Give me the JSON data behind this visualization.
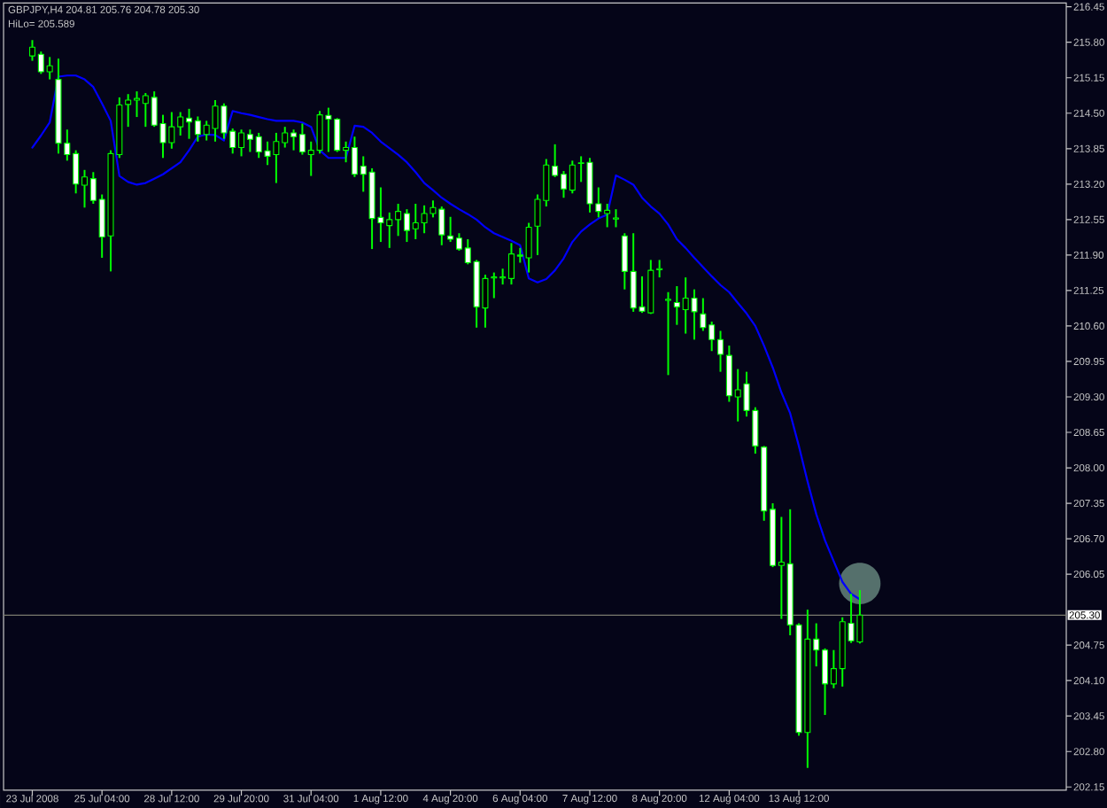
{
  "chart_data": {
    "type": "candlestick",
    "title": "GBPJPY,H4 204.81 205.76 204.78 205.30",
    "subtitle": "HiLo= 205.589",
    "categories": [
      "23 Jul 2008",
      null,
      null,
      null,
      null,
      null,
      null,
      null,
      "25 Jul 04:00",
      null,
      null,
      null,
      null,
      null,
      null,
      null,
      "28 Jul 12:00",
      null,
      null,
      null,
      null,
      null,
      null,
      null,
      "29 Jul 20:00",
      null,
      null,
      null,
      null,
      null,
      null,
      null,
      "31 Jul 04:00",
      null,
      null,
      null,
      null,
      null,
      null,
      null,
      "1 Aug 12:00",
      null,
      null,
      null,
      null,
      null,
      null,
      null,
      "4 Aug 20:00",
      null,
      null,
      null,
      null,
      null,
      null,
      null,
      "6 Aug 04:00",
      null,
      null,
      null,
      null,
      null,
      null,
      null,
      "7 Aug 12:00",
      null,
      null,
      null,
      null,
      null,
      null,
      null,
      "8 Aug 20:00",
      null,
      null,
      null,
      null,
      null,
      null,
      null,
      "12 Aug 04:00",
      null,
      null,
      null,
      null,
      null,
      null,
      null,
      "13 Aug 12:00",
      null,
      null,
      null,
      null,
      null,
      null,
      null
    ],
    "ohlc": [
      [
        215.55,
        215.84,
        215.46,
        215.71
      ],
      [
        215.58,
        215.63,
        215.22,
        215.26
      ],
      [
        215.26,
        215.53,
        215.12,
        215.37
      ],
      [
        215.12,
        215.5,
        213.76,
        213.95
      ],
      [
        213.95,
        214.2,
        213.63,
        213.74
      ],
      [
        213.76,
        213.82,
        213.03,
        213.2
      ],
      [
        213.18,
        213.46,
        212.77,
        213.33
      ],
      [
        213.3,
        213.42,
        212.84,
        212.9
      ],
      [
        212.92,
        213.01,
        211.85,
        212.23
      ],
      [
        212.25,
        213.82,
        211.6,
        213.76
      ],
      [
        213.74,
        214.79,
        213.68,
        214.65
      ],
      [
        214.66,
        214.85,
        214.25,
        214.74
      ],
      [
        214.74,
        214.9,
        214.43,
        214.77
      ],
      [
        214.68,
        214.87,
        214.25,
        214.82
      ],
      [
        214.79,
        214.9,
        214.25,
        214.28
      ],
      [
        214.31,
        214.47,
        213.68,
        213.96
      ],
      [
        213.96,
        214.52,
        213.85,
        214.25
      ],
      [
        214.25,
        214.52,
        214.09,
        214.43
      ],
      [
        214.41,
        214.58,
        214.03,
        214.34
      ],
      [
        214.36,
        214.44,
        213.98,
        214.11
      ],
      [
        214.11,
        214.36,
        214.0,
        214.28
      ],
      [
        214.22,
        214.74,
        213.98,
        214.63
      ],
      [
        214.63,
        214.68,
        214.03,
        214.14
      ],
      [
        214.17,
        214.22,
        213.76,
        213.87
      ],
      [
        213.87,
        214.2,
        213.71,
        214.14
      ],
      [
        214.11,
        214.2,
        213.79,
        214.02
      ],
      [
        214.07,
        214.14,
        213.68,
        213.79
      ],
      [
        213.81,
        213.98,
        213.55,
        213.71
      ],
      [
        213.74,
        214.14,
        213.22,
        213.98
      ],
      [
        213.96,
        214.25,
        213.87,
        214.14
      ],
      [
        214.14,
        214.2,
        213.82,
        214.07
      ],
      [
        214.11,
        214.31,
        213.74,
        213.79
      ],
      [
        213.74,
        213.98,
        213.35,
        213.82
      ],
      [
        213.82,
        214.54,
        213.76,
        214.47
      ],
      [
        214.46,
        214.6,
        213.79,
        214.39
      ],
      [
        214.39,
        214.41,
        213.79,
        213.82
      ],
      [
        213.82,
        213.98,
        213.6,
        213.87
      ],
      [
        213.87,
        214.07,
        213.33,
        213.38
      ],
      [
        213.53,
        213.71,
        213.06,
        213.38
      ],
      [
        213.42,
        213.49,
        212.01,
        212.57
      ],
      [
        212.59,
        213.14,
        212.14,
        212.49
      ],
      [
        212.44,
        212.68,
        212.03,
        212.55
      ],
      [
        212.55,
        212.84,
        212.25,
        212.7
      ],
      [
        212.66,
        212.74,
        212.14,
        212.35
      ],
      [
        212.38,
        212.84,
        212.19,
        212.49
      ],
      [
        212.49,
        212.81,
        212.3,
        212.66
      ],
      [
        212.66,
        212.9,
        212.59,
        212.77
      ],
      [
        212.74,
        212.79,
        212.08,
        212.27
      ],
      [
        212.25,
        212.6,
        212.14,
        212.19
      ],
      [
        212.21,
        212.3,
        211.98,
        212.01
      ],
      [
        212.03,
        212.19,
        211.73,
        211.76
      ],
      [
        211.78,
        211.81,
        210.57,
        210.95
      ],
      [
        210.93,
        211.54,
        210.57,
        211.47
      ],
      [
        211.48,
        211.58,
        211.11,
        211.5
      ],
      [
        211.48,
        211.65,
        211.36,
        211.5
      ],
      [
        211.47,
        212.12,
        211.36,
        211.92
      ],
      [
        211.88,
        212.03,
        211.76,
        211.9
      ],
      [
        211.85,
        212.49,
        211.58,
        212.41
      ],
      [
        212.43,
        213.01,
        211.9,
        212.92
      ],
      [
        212.9,
        213.66,
        212.79,
        213.55
      ],
      [
        213.53,
        213.93,
        213.33,
        213.36
      ],
      [
        213.38,
        213.44,
        212.95,
        213.11
      ],
      [
        213.09,
        213.63,
        213.03,
        213.55
      ],
      [
        213.58,
        213.71,
        213.24,
        213.59
      ],
      [
        213.6,
        213.68,
        212.68,
        212.84
      ],
      [
        212.84,
        213.14,
        212.59,
        212.7
      ],
      [
        212.66,
        212.84,
        212.41,
        212.72
      ],
      [
        212.56,
        212.74,
        212.41,
        212.58
      ],
      [
        212.25,
        212.3,
        211.27,
        211.6
      ],
      [
        211.6,
        212.3,
        210.86,
        210.93
      ],
      [
        210.95,
        211.51,
        210.84,
        210.87
      ],
      [
        210.84,
        211.81,
        210.82,
        211.62
      ],
      [
        211.63,
        211.81,
        211.49,
        211.65
      ],
      [
        211.07,
        211.22,
        209.7,
        211.09
      ],
      [
        211.03,
        211.33,
        210.62,
        210.95
      ],
      [
        210.9,
        211.49,
        210.46,
        211.11
      ],
      [
        211.11,
        211.27,
        210.35,
        210.86
      ],
      [
        210.82,
        211.11,
        210.51,
        210.57
      ],
      [
        210.62,
        210.68,
        210.14,
        210.35
      ],
      [
        210.35,
        210.51,
        209.76,
        210.08
      ],
      [
        210.06,
        210.24,
        209.21,
        209.32
      ],
      [
        209.3,
        209.81,
        208.85,
        209.43
      ],
      [
        209.54,
        209.76,
        208.94,
        209.05
      ],
      [
        209.05,
        209.11,
        208.26,
        208.4
      ],
      [
        208.38,
        208.4,
        207.03,
        207.21
      ],
      [
        207.24,
        207.35,
        206.18,
        206.21
      ],
      [
        206.21,
        207.1,
        205.23,
        206.27
      ],
      [
        206.24,
        207.24,
        204.93,
        205.12
      ],
      [
        205.12,
        205.15,
        203.09,
        203.15
      ],
      [
        203.15,
        205.4,
        202.5,
        204.86
      ],
      [
        204.86,
        205.15,
        204.36,
        204.66
      ],
      [
        204.66,
        204.69,
        203.47,
        204.04
      ],
      [
        204.04,
        204.66,
        203.96,
        204.32
      ],
      [
        204.32,
        205.26,
        203.99,
        205.18
      ],
      [
        205.15,
        205.69,
        204.79,
        204.83
      ],
      [
        204.81,
        205.76,
        204.78,
        205.3
      ]
    ],
    "color": "#00ff00",
    "series": [
      {
        "type": "scatter",
        "marker": "circle",
        "color": "#55706c",
        "values": [
          null,
          null,
          null,
          null,
          null,
          null,
          null,
          null,
          null,
          null,
          null,
          null,
          null,
          null,
          null,
          null,
          null,
          null,
          null,
          null,
          null,
          null,
          null,
          null,
          null,
          null,
          null,
          null,
          null,
          null,
          null,
          null,
          null,
          null,
          null,
          null,
          null,
          null,
          null,
          null,
          null,
          null,
          null,
          null,
          null,
          null,
          null,
          null,
          null,
          null,
          null,
          null,
          null,
          null,
          null,
          null,
          null,
          null,
          null,
          null,
          null,
          null,
          null,
          null,
          null,
          null,
          null,
          null,
          null,
          null,
          null,
          null,
          null,
          null,
          null,
          null,
          null,
          null,
          null,
          null,
          null,
          null,
          null,
          null,
          null,
          null,
          null,
          null,
          null,
          null,
          null,
          null,
          null,
          null,
          null,
          205.88
        ]
      },
      {
        "type": "line",
        "color": "#0000ff",
        "values": [
          213.87,
          214.09,
          214.33,
          215.17,
          215.19,
          215.19,
          215.12,
          214.98,
          214.68,
          214.36,
          213.35,
          213.24,
          213.19,
          213.22,
          213.3,
          213.38,
          213.49,
          213.6,
          213.82,
          214.07,
          214.11,
          214.1,
          214.0,
          214.54,
          214.5,
          214.47,
          214.43,
          214.39,
          214.36,
          214.36,
          214.36,
          214.33,
          214.25,
          213.82,
          213.68,
          213.68,
          213.68,
          214.27,
          214.25,
          214.14,
          213.98,
          213.86,
          213.74,
          213.6,
          213.42,
          213.22,
          213.09,
          212.95,
          212.84,
          212.74,
          212.65,
          212.55,
          212.41,
          212.3,
          212.23,
          212.16,
          212.08,
          211.47,
          211.4,
          211.46,
          211.62,
          211.84,
          212.14,
          212.33,
          212.46,
          212.57,
          212.64,
          213.36,
          213.28,
          213.19,
          212.95,
          212.79,
          212.66,
          212.46,
          212.19,
          212.03,
          211.85,
          211.68,
          211.51,
          211.35,
          211.22,
          211.02,
          210.83,
          210.6,
          210.24,
          209.84,
          209.38,
          209.0,
          208.4,
          207.75,
          207.15,
          206.67,
          206.29,
          205.91,
          205.69,
          205.589
        ]
      }
    ],
    "ylim": [
      202.09,
      216.52
    ],
    "yticks": [
      216.45,
      {
        "value": 215.8,
        "label": "215.80"
      },
      215.15,
      {
        "value": 214.5,
        "label": "214.50"
      },
      213.85,
      {
        "value": 213.2,
        "label": "213.20"
      },
      212.55,
      {
        "value": 211.9,
        "label": "211.90"
      },
      211.25,
      {
        "value": 210.6,
        "label": "210.60"
      },
      209.95,
      {
        "value": 209.3,
        "label": "209.30"
      },
      208.65,
      {
        "value": 208,
        "label": "208.00"
      },
      207.35,
      {
        "value": 206.7,
        "label": "206.70"
      },
      206.05,
      204.75,
      {
        "value": 204.1,
        "label": "204.10"
      },
      203.45,
      {
        "value": 202.8,
        "label": "202.80"
      },
      202.15
    ],
    "ref_lines": [
      {
        "axis": "y",
        "value": 205.3,
        "label": "205.30",
        "color": "#7a7a6e"
      }
    ]
  }
}
